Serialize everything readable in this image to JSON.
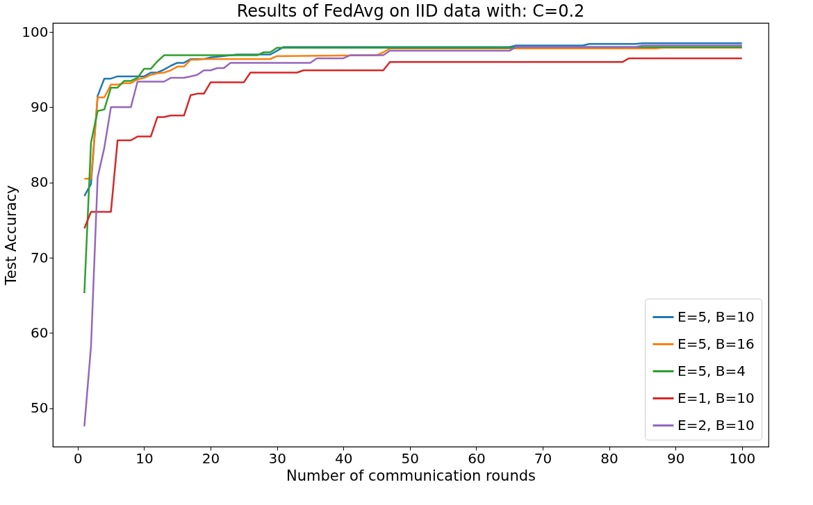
{
  "chart_data": {
    "type": "line",
    "title": "Results of FedAvg on IID data with: C=0.2",
    "xlabel": "Number of communication rounds",
    "ylabel": "Test Accuracy",
    "xlim": [
      -3.75,
      104
    ],
    "ylim": [
      44.9,
      101.2
    ],
    "xticks": [
      0,
      10,
      20,
      30,
      40,
      50,
      60,
      70,
      80,
      90,
      100
    ],
    "yticks": [
      50,
      60,
      70,
      80,
      90,
      100
    ],
    "grid": false,
    "legend": "bottom right",
    "marker": "none",
    "line_style": "solid",
    "series": [
      {
        "name": "E=5, B=10",
        "color": "#1f77b4",
        "x": [
          1,
          2,
          3,
          4,
          5,
          6,
          7,
          8,
          9,
          10,
          11,
          12,
          13,
          14,
          15,
          16,
          17,
          18,
          19,
          20,
          24,
          29,
          30,
          31,
          65,
          66,
          76,
          77,
          84,
          85,
          100
        ],
        "values": [
          78.2,
          79.8,
          91.5,
          93.8,
          93.8,
          94.1,
          94.1,
          94.1,
          94.1,
          94.1,
          94.6,
          94.6,
          95.0,
          95.5,
          95.9,
          95.9,
          96.4,
          96.4,
          96.4,
          96.6,
          97.0,
          97.0,
          97.5,
          98.0,
          98.0,
          98.2,
          98.2,
          98.4,
          98.4,
          98.5,
          98.5
        ]
      },
      {
        "name": "E=5, B=16",
        "color": "#ff7f0e",
        "x": [
          1,
          2,
          3,
          4,
          5,
          6,
          7,
          8,
          9,
          10,
          11,
          12,
          13,
          14,
          15,
          16,
          17,
          18,
          19,
          20,
          29,
          30,
          31,
          45,
          46,
          47,
          86,
          87,
          88,
          100
        ],
        "values": [
          80.5,
          80.5,
          91.3,
          91.3,
          93.0,
          93.0,
          93.2,
          93.2,
          93.7,
          93.9,
          94.3,
          94.5,
          94.6,
          94.9,
          95.4,
          95.4,
          96.3,
          96.3,
          96.4,
          96.4,
          96.4,
          96.8,
          96.8,
          96.9,
          97.3,
          97.8,
          97.8,
          97.8,
          97.9,
          97.9
        ]
      },
      {
        "name": "E=5, B=4",
        "color": "#2ca02c",
        "x": [
          1,
          2,
          3,
          4,
          5,
          6,
          7,
          8,
          9,
          10,
          11,
          12,
          13,
          14,
          27,
          28,
          29,
          30,
          31,
          65,
          66,
          100
        ],
        "values": [
          65.3,
          85.3,
          89.5,
          89.7,
          92.6,
          92.6,
          93.5,
          93.5,
          93.9,
          95.1,
          95.1,
          96.1,
          96.9,
          96.9,
          96.9,
          97.3,
          97.3,
          97.9,
          97.9,
          97.9,
          98.0,
          98.0
        ]
      },
      {
        "name": "E=1, B=10",
        "color": "#d62728",
        "x": [
          1,
          2,
          3,
          4,
          5,
          6,
          7,
          8,
          9,
          10,
          11,
          12,
          13,
          14,
          15,
          16,
          17,
          18,
          19,
          20,
          25,
          26,
          33,
          34,
          46,
          47,
          82,
          83,
          100
        ],
        "values": [
          73.9,
          76.1,
          76.1,
          76.1,
          76.1,
          85.6,
          85.6,
          85.6,
          86.1,
          86.1,
          86.1,
          88.7,
          88.7,
          88.9,
          88.9,
          88.9,
          91.6,
          91.8,
          91.8,
          93.3,
          93.3,
          94.6,
          94.6,
          94.9,
          94.9,
          96.0,
          96.0,
          96.5,
          96.5
        ]
      },
      {
        "name": "E=2, B=10",
        "color": "#9467bd",
        "x": [
          1,
          2,
          3,
          4,
          5,
          6,
          7,
          8,
          9,
          10,
          11,
          12,
          13,
          14,
          15,
          16,
          17,
          18,
          19,
          20,
          21,
          22,
          23,
          24,
          35,
          36,
          40,
          41,
          46,
          47,
          65,
          66,
          84,
          85,
          100
        ],
        "values": [
          47.6,
          58.2,
          80.7,
          84.6,
          90.0,
          90.0,
          90.0,
          90.0,
          93.4,
          93.4,
          93.4,
          93.4,
          93.4,
          93.9,
          93.9,
          93.9,
          94.1,
          94.3,
          94.9,
          94.9,
          95.2,
          95.2,
          95.9,
          95.9,
          95.9,
          96.5,
          96.5,
          96.9,
          96.9,
          97.5,
          97.5,
          98.0,
          98.0,
          98.2,
          98.2
        ]
      }
    ]
  }
}
